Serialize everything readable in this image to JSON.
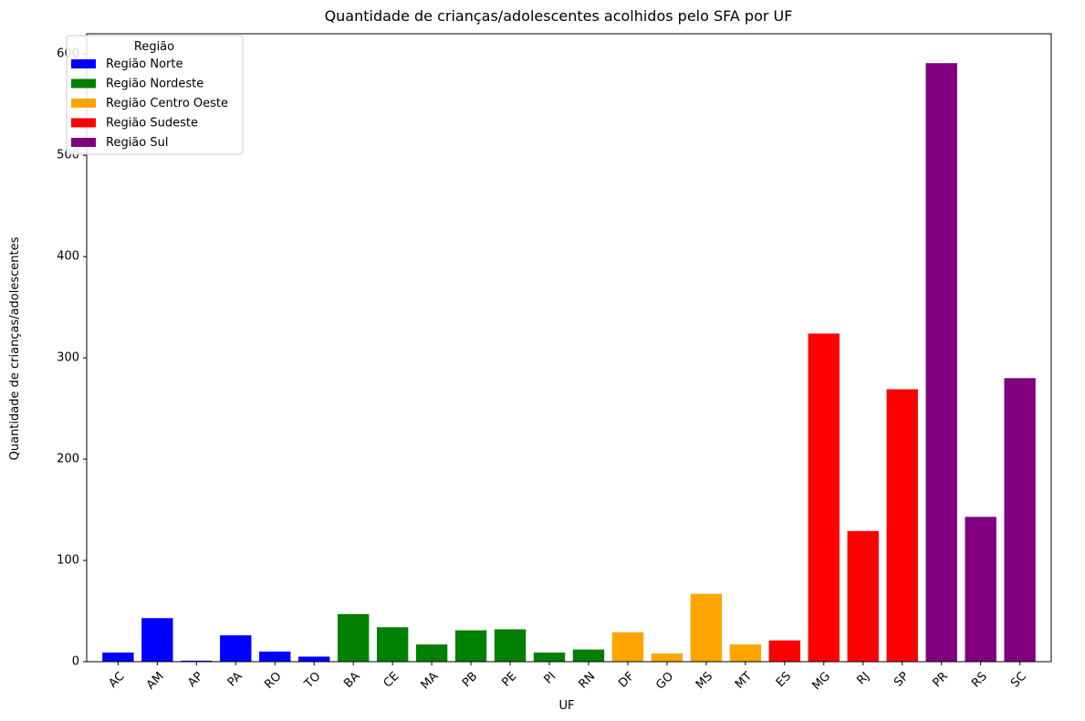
{
  "chart_data": {
    "type": "bar",
    "title": "Quantidade de crianças/adolescentes acolhidos pelo SFA por UF",
    "xlabel": "UF",
    "ylabel": "Quantidade de crianças/adolescentes",
    "ylim": [
      0,
      620
    ],
    "yticks": [
      0,
      100,
      200,
      300,
      400,
      500,
      600
    ],
    "grid": false,
    "legend_title": "Região",
    "legend_position": "top-left",
    "regions": [
      {
        "name": "Região Norte",
        "color": "#0000ff"
      },
      {
        "name": "Região Nordeste",
        "color": "#008000"
      },
      {
        "name": "Região Centro Oeste",
        "color": "#ffa500"
      },
      {
        "name": "Região Sudeste",
        "color": "#ff0000"
      },
      {
        "name": "Região Sul",
        "color": "#800080"
      }
    ],
    "categories": [
      "AC",
      "AM",
      "AP",
      "PA",
      "RO",
      "TO",
      "BA",
      "CE",
      "MA",
      "PB",
      "PE",
      "PI",
      "RN",
      "DF",
      "GO",
      "MS",
      "MT",
      "ES",
      "MG",
      "RJ",
      "SP",
      "PR",
      "RS",
      "SC"
    ],
    "values": [
      9,
      43,
      1,
      26,
      10,
      5,
      47,
      34,
      17,
      31,
      32,
      9,
      12,
      29,
      8,
      67,
      17,
      21,
      324,
      129,
      269,
      591,
      143,
      280
    ],
    "region_index": [
      0,
      0,
      0,
      0,
      0,
      0,
      1,
      1,
      1,
      1,
      1,
      1,
      1,
      2,
      2,
      2,
      2,
      3,
      3,
      3,
      3,
      4,
      4,
      4
    ]
  }
}
